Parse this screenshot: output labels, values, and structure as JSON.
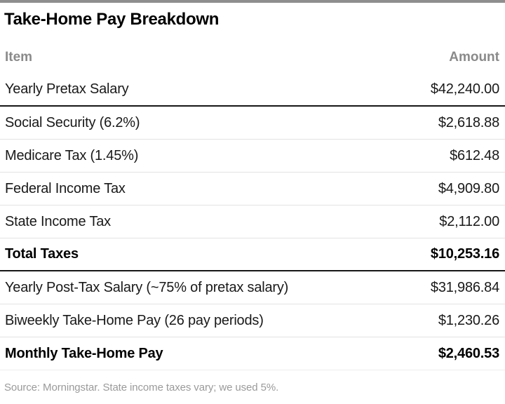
{
  "title": "Take-Home Pay Breakdown",
  "colors": {
    "top_bar": "#8e8e8e",
    "header_text": "#8a8a8a",
    "row_text": "#191919",
    "bold_row_text": "#000000",
    "divider_dark": "#161616",
    "divider_light": "#e3e3e3",
    "footer_text": "#9a9a9a",
    "background": "#ffffff"
  },
  "table": {
    "columns": [
      "Item",
      "Amount"
    ],
    "rows": [
      {
        "item": "Yearly Pretax Salary",
        "amount": "$42,240.00",
        "bold": false,
        "divider_after": "dark"
      },
      {
        "item": "Social Security (6.2%)",
        "amount": "$2,618.88",
        "bold": false,
        "divider_after": "light"
      },
      {
        "item": "Medicare Tax (1.45%)",
        "amount": "$612.48",
        "bold": false,
        "divider_after": "light"
      },
      {
        "item": "Federal Income Tax",
        "amount": "$4,909.80",
        "bold": false,
        "divider_after": "light"
      },
      {
        "item": "State Income Tax",
        "amount": "$2,112.00",
        "bold": false,
        "divider_after": "light"
      },
      {
        "item": "Total Taxes",
        "amount": "$10,253.16",
        "bold": true,
        "divider_after": "dark"
      },
      {
        "item": "Yearly Post-Tax Salary (~75% of pretax salary)",
        "amount": "$31,986.84",
        "bold": false,
        "divider_after": "light"
      },
      {
        "item": "Biweekly Take-Home Pay (26 pay periods)",
        "amount": "$1,230.26",
        "bold": false,
        "divider_after": "light"
      },
      {
        "item": "Monthly Take-Home Pay",
        "amount": "$2,460.53",
        "bold": true,
        "divider_after": "faint"
      }
    ]
  },
  "footer": {
    "source": "Source: Morningstar. State income taxes vary; we used 5%."
  },
  "chart_data": {
    "type": "table",
    "title": "Take-Home Pay Breakdown",
    "columns": [
      "Item",
      "Amount"
    ],
    "rows": [
      [
        "Yearly Pretax Salary",
        42240.0
      ],
      [
        "Social Security (6.2%)",
        2618.88
      ],
      [
        "Medicare Tax (1.45%)",
        612.48
      ],
      [
        "Federal Income Tax",
        4909.8
      ],
      [
        "State Income Tax",
        2112.0
      ],
      [
        "Total Taxes",
        10253.16
      ],
      [
        "Yearly Post-Tax Salary (~75% of pretax salary)",
        31986.84
      ],
      [
        "Biweekly Take-Home Pay (26 pay periods)",
        1230.26
      ],
      [
        "Monthly Take-Home Pay",
        2460.53
      ]
    ],
    "emphasized_rows": [
      "Total Taxes",
      "Monthly Take-Home Pay"
    ],
    "source_note": "Source: Morningstar. State income taxes vary; we used 5%."
  }
}
